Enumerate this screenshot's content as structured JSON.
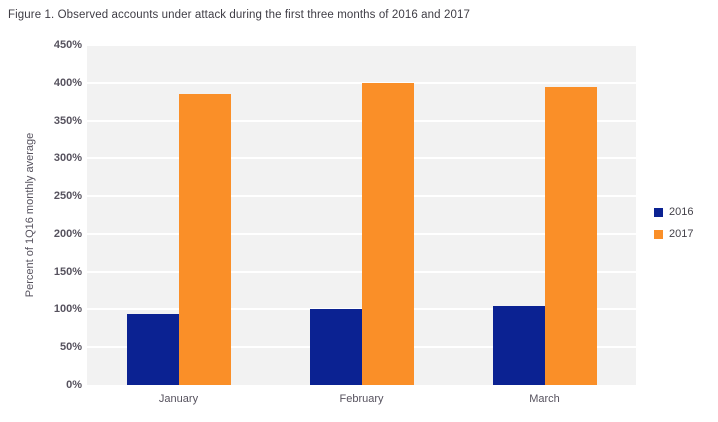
{
  "figure": {
    "title": "Figure 1. Observed accounts under attack during the first three months of 2016 and 2017"
  },
  "colors": {
    "plot_background": "#f2f2f2",
    "gridline": "#ffffff",
    "series_2016": "#0b2292",
    "series_2017": "#fa8f28",
    "title_text": "#3f3d45",
    "axis_text": "#56525e"
  },
  "chart_data": {
    "type": "bar",
    "title": "Figure 1. Observed accounts under attack during the first three months of 2016 and 2017",
    "categories": [
      "January",
      "February",
      "March"
    ],
    "series": [
      {
        "name": "2016",
        "color": "#0b2292",
        "values": [
          94,
          101,
          104
        ]
      },
      {
        "name": "2017",
        "color": "#fa8f28",
        "values": [
          385,
          400,
          394
        ]
      }
    ],
    "xlabel": "",
    "ylabel": "Percent of 1Q16 monthly average",
    "ylim": [
      0,
      450
    ],
    "ytick_step": 50,
    "ytick_suffix": "%",
    "grid": true,
    "legend_position": "right"
  }
}
